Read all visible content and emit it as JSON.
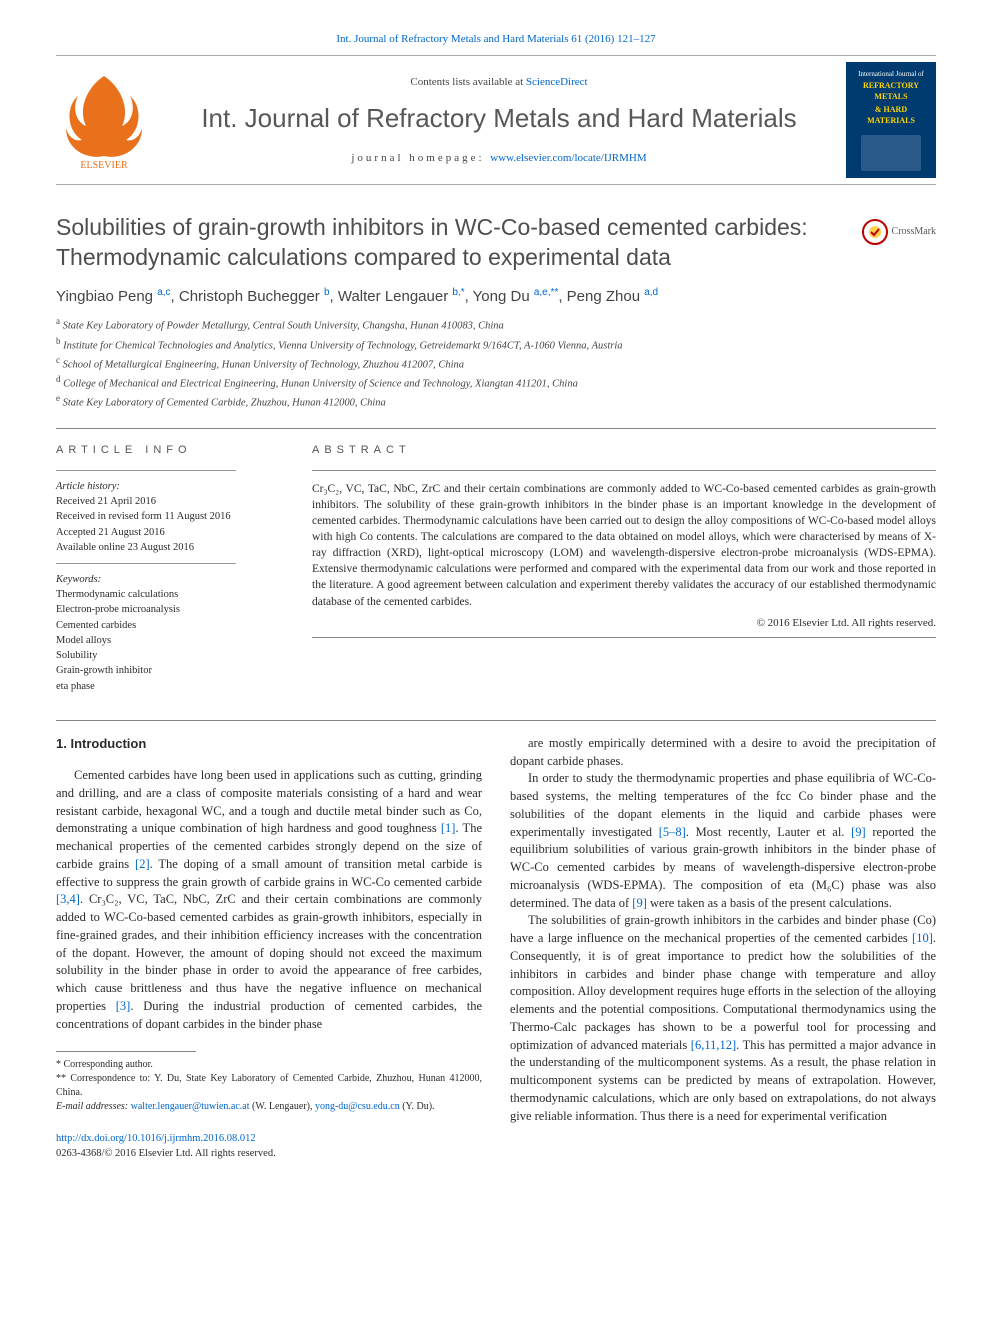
{
  "top_journal_ref": "Int. Journal of Refractory Metals and Hard Materials 61 (2016) 121–127",
  "header": {
    "contents_prefix": "Contents lists available at ",
    "contents_link": "ScienceDirect",
    "journal_name": "Int. Journal of Refractory Metals and Hard Materials",
    "homepage_label": "journal homepage: ",
    "homepage_url": "www.elsevier.com/locate/IJRMHM",
    "cover_line1": "International Journal of",
    "cover_line2": "REFRACTORY METALS",
    "cover_line3": "& HARD MATERIALS"
  },
  "crossmark_label": "CrossMark",
  "title": "Solubilities of grain-growth inhibitors in WC-Co-based cemented carbides: Thermodynamic calculations compared to experimental data",
  "authors_html": "Yingbiao Peng <sup>a,c</sup>, Christoph Buchegger <sup>b</sup>, Walter Lengauer <sup>b,*</sup>, Yong Du <sup>a,e,**</sup>, Peng Zhou <sup>a,d</sup>",
  "affiliations": [
    {
      "key": "a",
      "text": "State Key Laboratory of Powder Metallurgy, Central South University, Changsha, Hunan 410083, China"
    },
    {
      "key": "b",
      "text": "Institute for Chemical Technologies and Analytics, Vienna University of Technology, Getreidemarkt 9/164CT, A-1060 Vienna, Austria"
    },
    {
      "key": "c",
      "text": "School of Metallurgical Engineering, Hunan University of Technology, Zhuzhou 412007, China"
    },
    {
      "key": "d",
      "text": "College of Mechanical and Electrical Engineering, Hunan University of Science and Technology, Xiangtan 411201, China"
    },
    {
      "key": "e",
      "text": "State Key Laboratory of Cemented Carbide, Zhuzhou, Hunan 412000, China"
    }
  ],
  "article_info": {
    "heading": "ARTICLE INFO",
    "history_label": "Article history:",
    "history_lines": [
      "Received 21 April 2016",
      "Received in revised form 11 August 2016",
      "Accepted 21 August 2016",
      "Available online 23 August 2016"
    ],
    "keywords_label": "Keywords:",
    "keywords": [
      "Thermodynamic calculations",
      "Electron-probe microanalysis",
      "Cemented carbides",
      "Model alloys",
      "Solubility",
      "Grain-growth inhibitor",
      "eta phase"
    ]
  },
  "abstract": {
    "heading": "ABSTRACT",
    "text": "Cr₃C₂, VC, TaC, NbC, ZrC and their certain combinations are commonly added to WC-Co-based cemented carbides as grain-growth inhibitors. The solubility of these grain-growth inhibitors in the binder phase is an important knowledge in the development of cemented carbides. Thermodynamic calculations have been carried out to design the alloy compositions of WC-Co-based model alloys with high Co contents. The calculations are compared to the data obtained on model alloys, which were characterised by means of X-ray diffraction (XRD), light-optical microscopy (LOM) and wavelength-dispersive electron-probe microanalysis (WDS-EPMA). Extensive thermodynamic calculations were performed and compared with the experimental data from our work and those reported in the literature. A good agreement between calculation and experiment thereby validates the accuracy of our established thermodynamic database of the cemented carbides.",
    "copyright": "© 2016 Elsevier Ltd. All rights reserved."
  },
  "section_heading": "1. Introduction",
  "body": {
    "left_paras": [
      "Cemented carbides have long been used in applications such as cutting, grinding and drilling, and are a class of composite materials consisting of a hard and wear resistant carbide, hexagonal WC, and a tough and ductile metal binder such as Co, demonstrating a unique combination of high hardness and good toughness <a class=\"ref-link\" href=\"#\" data-name=\"citation-link\" data-interactable=\"true\">[1]</a>. The mechanical properties of the cemented carbides strongly depend on the size of carbide grains <a class=\"ref-link\" href=\"#\" data-name=\"citation-link\" data-interactable=\"true\">[2]</a>. The doping of a small amount of transition metal carbide is effective to suppress the grain growth of carbide grains in WC-Co cemented carbide <a class=\"ref-link\" href=\"#\" data-name=\"citation-link\" data-interactable=\"true\">[3,4]</a>. Cr₃C₂, VC, TaC, NbC, ZrC and their certain combinations are commonly added to WC-Co-based cemented carbides as grain-growth inhibitors, especially in fine-grained grades, and their inhibition efficiency increases with the concentration of the dopant. However, the amount of doping should not exceed the maximum solubility in the binder phase in order to avoid the appearance of free carbides, which cause brittleness and thus have the negative influence on mechanical properties <a class=\"ref-link\" href=\"#\" data-name=\"citation-link\" data-interactable=\"true\">[3]</a>. During the industrial production of cemented carbides, the concentrations of dopant carbides in the binder phase"
    ],
    "right_paras": [
      "are mostly empirically determined with a desire to avoid the precipitation of dopant carbide phases.",
      "In order to study the thermodynamic properties and phase equilibria of WC-Co-based systems, the melting temperatures of the fcc Co binder phase and the solubilities of the dopant elements in the liquid and carbide phases were experimentally investigated <a class=\"ref-link\" href=\"#\" data-name=\"citation-link\" data-interactable=\"true\">[5–8]</a>. Most recently, Lauter et al. <a class=\"ref-link\" href=\"#\" data-name=\"citation-link\" data-interactable=\"true\">[9]</a> reported the equilibrium solubilities of various grain-growth inhibitors in the binder phase of WC-Co cemented carbides by means of wavelength-dispersive electron-probe microanalysis (WDS-EPMA). The composition of eta (M₆C) phase was also determined. The data of <a class=\"ref-link\" href=\"#\" data-name=\"citation-link\" data-interactable=\"true\">[9]</a> were taken as a basis of the present calculations.",
      "The solubilities of grain-growth inhibitors in the carbides and binder phase (Co) have a large influence on the mechanical properties of the cemented carbides <a class=\"ref-link\" href=\"#\" data-name=\"citation-link\" data-interactable=\"true\">[10]</a>. Consequently, it is of great importance to predict how the solubilities of the inhibitors in carbides and binder phase change with temperature and alloy composition. Alloy development requires huge efforts in the selection of the alloying elements and the potential compositions. Computational thermodynamics using the Thermo-Calc packages has shown to be a powerful tool for processing and optimization of advanced materials <a class=\"ref-link\" href=\"#\" data-name=\"citation-link\" data-interactable=\"true\">[6,11,12]</a>. This has permitted a major advance in the understanding of the multicomponent systems. As a result, the phase relation in multicomponent systems can be predicted by means of extrapolation. However, thermodynamic calculations, which are only based on extrapolations, do not always give reliable information. Thus there is a need for experimental verification"
    ]
  },
  "footnotes": {
    "star1": "* Corresponding author.",
    "star2": "** Correspondence to: Y. Du, State Key Laboratory of Cemented Carbide, Zhuzhou, Hunan 412000, China.",
    "emails_label": "E-mail addresses: ",
    "emails": [
      {
        "addr": "walter.lengauer@tuwien.ac.at",
        "who": "(W. Lengauer)"
      },
      {
        "addr": "yong-du@csu.edu.cn",
        "who": "(Y. Du)."
      }
    ]
  },
  "doi": {
    "url": "http://dx.doi.org/10.1016/j.ijrmhm.2016.08.012",
    "issn_line": "0263-4368/© 2016 Elsevier Ltd. All rights reserved."
  },
  "colors": {
    "link": "#0066cc",
    "elsevier_orange": "#e9711c",
    "cover_bg": "#003b6f",
    "cover_yellow": "#ffd400",
    "rule": "#888888",
    "heading_gray": "#4e4e4e"
  }
}
